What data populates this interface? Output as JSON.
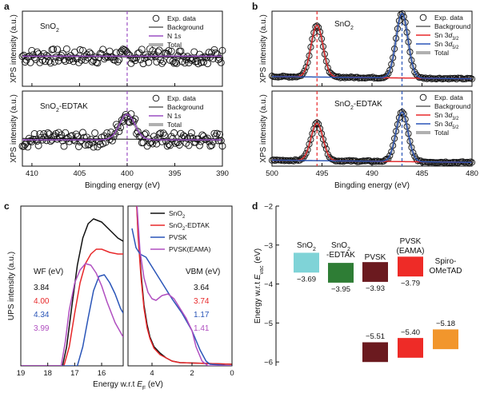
{
  "panel_labels": {
    "a": "a",
    "b": "b",
    "c": "c",
    "d": "d"
  },
  "colors": {
    "black": "#111111",
    "purple": "#9b4fc4",
    "red": "#e8282a",
    "blue": "#2a55b8",
    "gray": "#b0b0b0",
    "eama": "#b04fc0",
    "sno2_box": "#7fd3d7",
    "edtak_box": "#2e7d35",
    "pvsk_box": "#6b1a1f",
    "eama_box": "#ee2b27",
    "spiro_box": "#f2962c"
  },
  "chart_data": [
    {
      "id": "a_top",
      "type": "scatter",
      "panel": "a",
      "title": "SnO2",
      "xlabel": "",
      "ylabel": "XPS intensity (a.u.)",
      "xlim": [
        411,
        390
      ],
      "reversed_x": true,
      "x_ticks": [
        "410",
        "405",
        "400",
        "395",
        "390"
      ],
      "x_tick_values": [
        410,
        405,
        400,
        395,
        390
      ],
      "ylim": [
        0,
        1
      ],
      "dashed_vline_x": 400,
      "legend": [
        "Exp. data",
        "Background",
        "N 1s",
        "Total"
      ],
      "series": [
        {
          "name": "Exp. data",
          "type": "scatter",
          "marker": "open-circle",
          "baseline": 0.4,
          "noise": 0.1,
          "count": 150
        },
        {
          "name": "Background",
          "type": "line",
          "y_left": 0.41,
          "y_right": 0.38
        },
        {
          "name": "N 1s",
          "type": "line",
          "flat": 0.4
        },
        {
          "name": "Total",
          "type": "line",
          "flat": 0.4
        }
      ]
    },
    {
      "id": "a_bottom",
      "type": "scatter",
      "panel": "a",
      "title": "SnO2-EDTAK",
      "xlabel": "Bingding energy (eV)",
      "ylabel": "XPS intensity (a.u.)",
      "xlim": [
        411,
        390
      ],
      "reversed_x": true,
      "x_ticks": [
        "410",
        "405",
        "400",
        "395",
        "390"
      ],
      "x_tick_values": [
        410,
        405,
        400,
        395,
        390
      ],
      "ylim": [
        0,
        1
      ],
      "dashed_vline_x": 400,
      "legend": [
        "Exp. data",
        "Background",
        "N 1s",
        "Total"
      ],
      "series": [
        {
          "name": "Exp. data",
          "type": "scatter",
          "marker": "open-circle",
          "baseline": 0.36,
          "noise": 0.1,
          "count": 150
        },
        {
          "name": "Background",
          "type": "line",
          "y_left": 0.37,
          "y_right": 0.35
        },
        {
          "name": "N 1s",
          "type": "peak",
          "center": 400,
          "height": 0.34,
          "fwhm": 1.9,
          "base": 0.35
        },
        {
          "name": "Total",
          "type": "peak",
          "center": 400,
          "height": 0.34,
          "fwhm": 1.9,
          "base": 0.35
        }
      ]
    },
    {
      "id": "b_top",
      "type": "scatter",
      "panel": "b",
      "title": "SnO2",
      "xlabel": "",
      "ylabel": "XPS intensity (a.u.)",
      "xlim": [
        500,
        480
      ],
      "reversed_x": true,
      "x_ticks": [
        "500",
        "495",
        "490",
        "485",
        "480"
      ],
      "x_tick_values": [
        500,
        495,
        490,
        485,
        480
      ],
      "ylim": [
        0,
        1
      ],
      "dashed_vlines": [
        {
          "x": 495.5,
          "color": "red"
        },
        {
          "x": 487,
          "color": "blue"
        }
      ],
      "legend": [
        "Exp. data",
        "Background",
        "Sn 3d3/2",
        "Sn 3d5/2",
        "Total"
      ],
      "series": [
        {
          "name": "Sn 3d3/2",
          "type": "peak",
          "center": 495.5,
          "height": 0.69,
          "fwhm": 1.4,
          "base": 0.16
        },
        {
          "name": "Sn 3d5/2",
          "type": "peak",
          "center": 487,
          "height": 0.86,
          "fwhm": 1.4,
          "base": 0.13
        },
        {
          "name": "Background",
          "type": "line",
          "y_left": 0.13,
          "y_right": 0.1
        },
        {
          "name": "Exp. data",
          "type": "scatter",
          "marker": "open-circle"
        }
      ]
    },
    {
      "id": "b_bottom",
      "type": "scatter",
      "panel": "b",
      "title": "SnO2-EDTAK",
      "xlabel": "Bingding energy (eV)",
      "ylabel": "XPS intensity (a.u.)",
      "xlim": [
        500,
        480
      ],
      "reversed_x": true,
      "x_ticks": [
        "500",
        "495",
        "490",
        "485",
        "480"
      ],
      "x_tick_values": [
        500,
        495,
        490,
        485,
        480
      ],
      "ylim": [
        0,
        1
      ],
      "dashed_vlines": [
        {
          "x": 495.5,
          "color": "red"
        },
        {
          "x": 487,
          "color": "blue"
        }
      ],
      "legend": [
        "Exp. data",
        "Background",
        "Sn 3d3/2",
        "Sn 3d5/2",
        "Total"
      ],
      "series": [
        {
          "name": "Sn 3d3/2",
          "type": "peak",
          "center": 495.5,
          "height": 0.5,
          "fwhm": 1.4,
          "base": 0.08
        },
        {
          "name": "Sn 3d5/2",
          "type": "peak",
          "center": 487,
          "height": 0.66,
          "fwhm": 1.4,
          "base": 0.07
        },
        {
          "name": "Background",
          "type": "line",
          "y_left": 0.08,
          "y_right": 0.05
        },
        {
          "name": "Exp. data",
          "type": "scatter",
          "marker": "open-circle"
        }
      ]
    },
    {
      "id": "c_left",
      "type": "line",
      "panel": "c",
      "xlabel": "Energy w.r.t E_F (eV)",
      "ylabel": "UPS intensity (a.u.)",
      "xlim": [
        19,
        15.2
      ],
      "x_ticks": [
        "19",
        "18",
        "17",
        "16"
      ],
      "x_tick_values": [
        19,
        18,
        17,
        16
      ],
      "ylim": [
        0,
        1
      ],
      "wf_title": "WF (eV)",
      "wf_values": [
        "3.84",
        "4.00",
        "4.34",
        "3.99"
      ],
      "series": [
        {
          "name": "SnO2",
          "color": "black",
          "x": [
            19,
            17.45,
            17.3,
            17.1,
            16.9,
            16.7,
            16.5,
            16.3,
            16.0,
            15.7,
            15.4,
            15.2
          ],
          "y": [
            0,
            0,
            0.12,
            0.38,
            0.63,
            0.8,
            0.89,
            0.92,
            0.9,
            0.85,
            0.8,
            0.78
          ]
        },
        {
          "name": "SnO2-EDTAK",
          "color": "red",
          "x": [
            19,
            17.4,
            17.2,
            17.0,
            16.8,
            16.6,
            16.4,
            16.2,
            16.0,
            15.7,
            15.4,
            15.2
          ],
          "y": [
            0,
            0,
            0.12,
            0.33,
            0.52,
            0.64,
            0.7,
            0.73,
            0.73,
            0.71,
            0.7,
            0.7
          ]
        },
        {
          "name": "PVSK",
          "color": "blue",
          "x": [
            19,
            16.9,
            16.7,
            16.5,
            16.3,
            16.1,
            15.9,
            15.7,
            15.5,
            15.3,
            15.2
          ],
          "y": [
            0,
            0,
            0.12,
            0.3,
            0.47,
            0.56,
            0.57,
            0.52,
            0.45,
            0.36,
            0.33
          ]
        },
        {
          "name": "PVSK(EAMA)",
          "color": "eama",
          "x": [
            19,
            17.5,
            17.35,
            17.2,
            17.0,
            16.8,
            16.6,
            16.4,
            16.2,
            16.0,
            15.8,
            15.5,
            15.2
          ],
          "y": [
            0,
            0,
            0.15,
            0.35,
            0.52,
            0.6,
            0.64,
            0.63,
            0.58,
            0.5,
            0.4,
            0.27,
            0.18
          ]
        }
      ]
    },
    {
      "id": "c_right",
      "type": "line",
      "panel": "c",
      "xlabel": "",
      "xlim": [
        5.2,
        0
      ],
      "x_ticks": [
        "4",
        "2",
        "0"
      ],
      "x_tick_values": [
        4,
        2,
        0
      ],
      "ylim": [
        0,
        1
      ],
      "legend": [
        "SnO2",
        "SnO2-EDTAK",
        "PVSK",
        "PVSK(EAMA)"
      ],
      "vbm_title": "VBM (eV)",
      "vbm_values": [
        "3.64",
        "3.74",
        "1.17",
        "1.41"
      ],
      "series": [
        {
          "name": "SnO2",
          "color": "black",
          "x": [
            4.8,
            4.7,
            4.55,
            4.4,
            4.25,
            4.1,
            3.9,
            3.6,
            3.3,
            3.0,
            2.6,
            0
          ],
          "y": [
            1.1,
            0.85,
            0.58,
            0.38,
            0.26,
            0.18,
            0.12,
            0.08,
            0.05,
            0.03,
            0.02,
            0.01
          ]
        },
        {
          "name": "SnO2-EDTAK",
          "color": "red",
          "x": [
            4.8,
            4.7,
            4.55,
            4.4,
            4.25,
            4.1,
            3.9,
            3.6,
            3.3,
            3.0,
            2.6,
            0
          ],
          "y": [
            1.1,
            0.82,
            0.55,
            0.36,
            0.24,
            0.17,
            0.11,
            0.07,
            0.05,
            0.03,
            0.02,
            0.01
          ]
        },
        {
          "name": "PVSK",
          "color": "blue",
          "x": [
            5.0,
            4.8,
            4.6,
            4.3,
            4.0,
            3.5,
            3.0,
            2.5,
            2.0,
            1.6,
            1.3,
            1.1,
            0
          ],
          "y": [
            0.86,
            0.74,
            0.7,
            0.68,
            0.62,
            0.52,
            0.42,
            0.33,
            0.22,
            0.1,
            0.03,
            0.01,
            0.0
          ]
        },
        {
          "name": "PVSK(EAMA)",
          "color": "eama",
          "x": [
            4.8,
            4.6,
            4.4,
            4.2,
            4.0,
            3.8,
            3.5,
            3.2,
            2.9,
            2.6,
            2.3,
            2.0,
            1.8,
            1.5,
            1.2,
            0
          ],
          "y": [
            1.1,
            0.72,
            0.55,
            0.46,
            0.42,
            0.41,
            0.44,
            0.45,
            0.42,
            0.36,
            0.3,
            0.22,
            0.12,
            0.03,
            0.0,
            0.0
          ]
        }
      ]
    },
    {
      "id": "d",
      "type": "bar",
      "panel": "d",
      "ylabel": "Energy w.r.t E_vac (eV)",
      "ylim": [
        -6.1,
        -2
      ],
      "y_ticks": [
        "-2",
        "-3",
        "-4",
        "-5",
        "-6"
      ],
      "y_tick_values": [
        -2,
        -3,
        -4,
        -5,
        -6
      ],
      "categories": [
        "SnO2",
        "SnO2-EDTAK",
        "PVSK",
        "PVSK(EAMA)",
        "Spiro-OMeTAD"
      ],
      "category_labels": [
        "SnO2",
        "SnO2\n-EDTAK",
        "PVSK",
        "PVSK\n(EAMA)",
        "Spiro-\nOMeTAD"
      ],
      "levels": [
        {
          "material": "SnO2",
          "value": -3.69,
          "label": "−3.69",
          "color": "sno2_box"
        },
        {
          "material": "SnO2-EDTAK",
          "value": -3.95,
          "label": "−3.95",
          "color": "edtak_box"
        },
        {
          "material": "PVSK",
          "value": -3.93,
          "label": "−3.93",
          "color": "pvsk_box"
        },
        {
          "material": "PVSK(EAMA)",
          "value": -3.79,
          "label": "−3.79",
          "color": "eama_box"
        },
        {
          "material": "PVSK",
          "value": -5.51,
          "label": "−5.51",
          "color": "pvsk_box"
        },
        {
          "material": "PVSK(EAMA)",
          "value": -5.4,
          "label": "−5.40",
          "color": "eama_box"
        },
        {
          "material": "Spiro-OMeTAD",
          "value": -5.18,
          "label": "−5.18",
          "color": "spiro_box"
        }
      ]
    }
  ]
}
